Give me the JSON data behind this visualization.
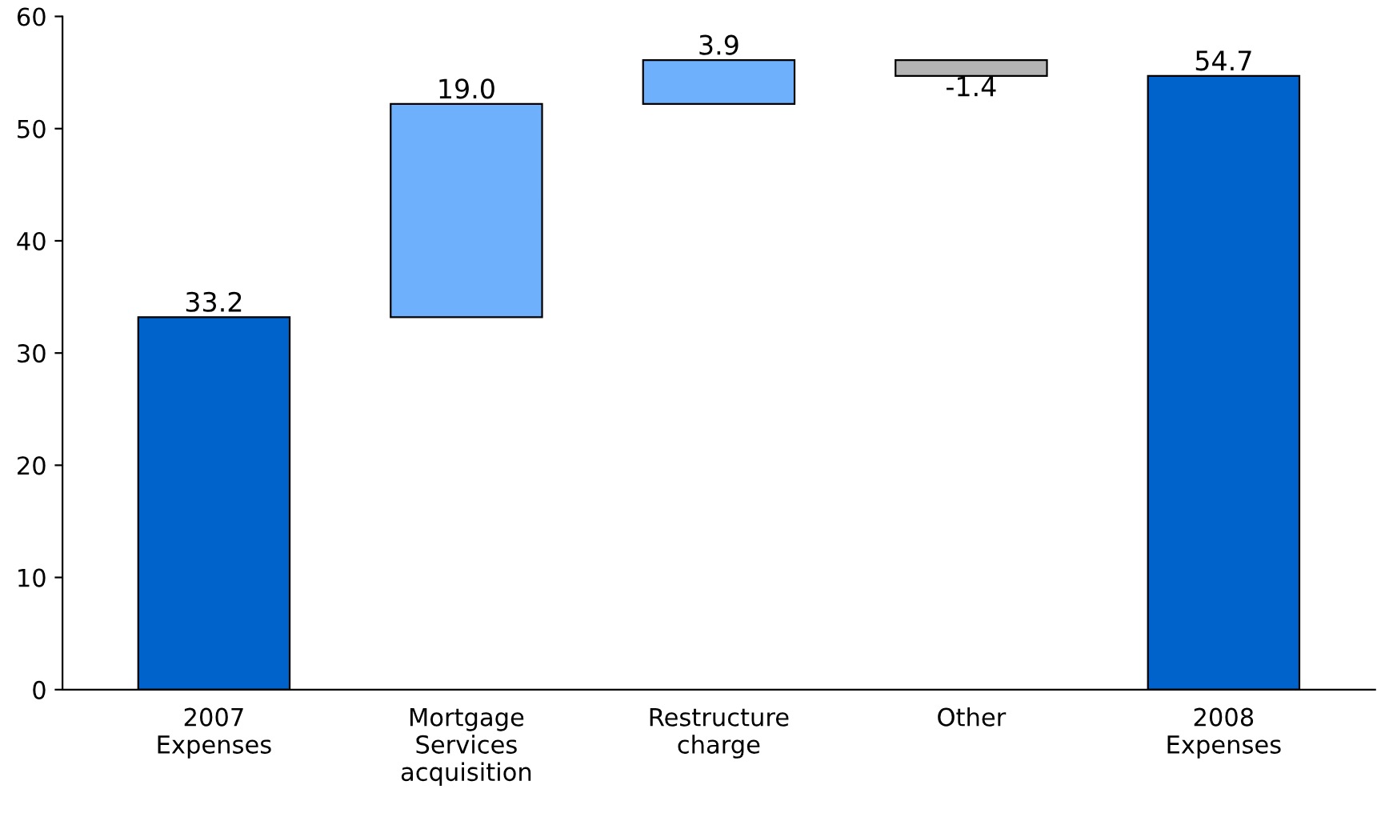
{
  "chart_data": {
    "type": "bar",
    "categories": [
      "2007\nExpenses",
      "Mortgage\nServices\nacquisition",
      "Restructure\ncharge",
      "Other",
      "2008\nExpenses"
    ],
    "values": [
      33.2,
      19.0,
      3.9,
      -1.4,
      54.7
    ],
    "base": [
      0,
      33.2,
      52.2,
      56.1,
      0
    ],
    "colors": [
      "#0063cc",
      "#6eb0fc",
      "#6eb0fc",
      "#b4b4b4",
      "#0063cc"
    ],
    "value_labels": [
      "33.2",
      "19.0",
      "3.9",
      "-1.4",
      "54.7"
    ],
    "ylim": [
      0,
      60
    ],
    "yticks": [
      0,
      10,
      20,
      30,
      40,
      50,
      60
    ],
    "grid": false,
    "legend": false
  }
}
